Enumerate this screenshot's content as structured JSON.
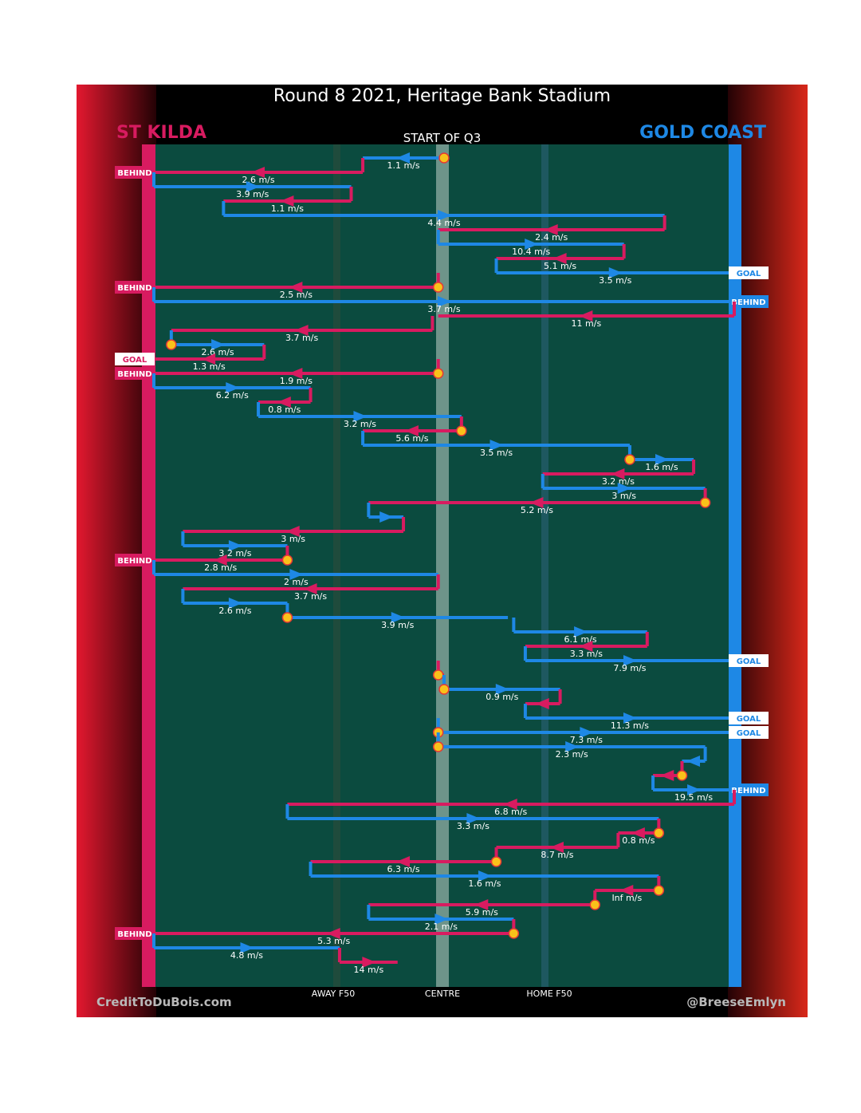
{
  "title": "Round 8 2021, Heritage Bank Stadium",
  "teams": {
    "left": "ST KILDA",
    "right": "GOLD COAST"
  },
  "period_label": "START OF Q3",
  "axis_labels": [
    "AWAY F50",
    "CENTRE",
    "HOME F50"
  ],
  "credits": {
    "left": "CreditToDuBois.com",
    "right": "@BreeseEmlyn"
  },
  "colors": {
    "st_kilda": "#d81b60",
    "gold_coast": "#1e88e5",
    "field": "#0b4b3f",
    "ball": "#f9c11a"
  },
  "chart_data": {
    "type": "line",
    "description_units": "speed labels in m/s; x = ground position from St Kilda goal (0) to Gold Coast goal (100)",
    "events": [
      {
        "team": "GC",
        "from": 50,
        "to": 36,
        "speed": "1.1 m/s",
        "start_ball": true
      },
      {
        "team": "STK",
        "from": 36,
        "to": 0,
        "speed": "2.6 m/s",
        "result": "BEHIND"
      },
      {
        "team": "GC",
        "from": 0,
        "to": 34,
        "speed": "3.9 m/s"
      },
      {
        "team": "STK",
        "from": 34,
        "to": 12,
        "speed": "1.1 m/s"
      },
      {
        "team": "GC",
        "from": 12,
        "to": 88,
        "speed": "4.4 m/s"
      },
      {
        "team": "STK",
        "from": 88,
        "to": 49,
        "speed": "2.4 m/s"
      },
      {
        "team": "GC",
        "from": 49,
        "to": 81,
        "speed": "10.4 m/s"
      },
      {
        "team": "STK",
        "from": 81,
        "to": 59,
        "speed": "5.1 m/s"
      },
      {
        "team": "GC",
        "from": 59,
        "to": 100,
        "speed": "3.5 m/s",
        "result": "GOAL"
      },
      {
        "team": "STK",
        "from": 49,
        "to": 0,
        "speed": "2.5 m/s",
        "result": "BEHIND",
        "start_ball": true
      },
      {
        "team": "GC",
        "from": 0,
        "to": 100,
        "speed": "3.7 m/s",
        "result": "BEHIND"
      },
      {
        "team": "STK",
        "from": 100,
        "to": 49,
        "speed": "11 m/s"
      },
      {
        "team": "STK",
        "from": 48,
        "to": 3,
        "speed": "3.7 m/s"
      },
      {
        "team": "GC",
        "from": 3,
        "to": 19,
        "speed": "2.6 m/s",
        "start_ball": true
      },
      {
        "team": "STK",
        "from": 19,
        "to": 0,
        "speed": "1.3 m/s",
        "result": "GOAL"
      },
      {
        "team": "STK",
        "from": 49,
        "to": 0,
        "speed": "1.9 m/s",
        "result": "BEHIND",
        "start_ball": true
      },
      {
        "team": "GC",
        "from": 0,
        "to": 27,
        "speed": "6.2 m/s"
      },
      {
        "team": "STK",
        "from": 27,
        "to": 18,
        "speed": "0.8 m/s"
      },
      {
        "team": "GC",
        "from": 18,
        "to": 53,
        "speed": "3.2 m/s"
      },
      {
        "team": "STK",
        "from": 53,
        "to": 36,
        "speed": "5.6 m/s",
        "start_ball": true
      },
      {
        "team": "GC",
        "from": 36,
        "to": 82,
        "speed": "3.5 m/s"
      },
      {
        "team": "GC",
        "from": 82,
        "to": 93,
        "speed": "1.6 m/s",
        "start_ball": true
      },
      {
        "team": "STK",
        "from": 93,
        "to": 67,
        "speed": "3.2 m/s"
      },
      {
        "team": "GC",
        "from": 67,
        "to": 95,
        "speed": "3 m/s"
      },
      {
        "team": "STK",
        "from": 95,
        "to": 37,
        "speed": "5.2 m/s",
        "start_ball": true
      },
      {
        "team": "GC",
        "from": 37,
        "to": 43,
        "speed": ""
      },
      {
        "team": "STK",
        "from": 43,
        "to": 5,
        "speed": "3 m/s"
      },
      {
        "team": "GC",
        "from": 5,
        "to": 23,
        "speed": "3.2 m/s"
      },
      {
        "team": "STK",
        "from": 23,
        "to": 0,
        "speed": "2.8 m/s",
        "result": "BEHIND",
        "start_ball": true
      },
      {
        "team": "GC",
        "from": 0,
        "to": 49,
        "speed": "2 m/s"
      },
      {
        "team": "STK",
        "from": 49,
        "to": 5,
        "speed": "3.7 m/s"
      },
      {
        "team": "GC",
        "from": 5,
        "to": 23,
        "speed": "2.6 m/s"
      },
      {
        "team": "GC",
        "from": 23,
        "to": 61,
        "speed": "3.9 m/s",
        "start_ball": true
      },
      {
        "team": "GC",
        "from": 62,
        "to": 85,
        "speed": "6.1 m/s"
      },
      {
        "team": "STK",
        "from": 85,
        "to": 64,
        "speed": "3.3 m/s"
      },
      {
        "team": "GC",
        "from": 64,
        "to": 100,
        "speed": "7.9 m/s",
        "result": "GOAL"
      },
      {
        "team": "STK",
        "from": 49,
        "to": 50,
        "speed": "",
        "start_ball": true
      },
      {
        "team": "GC",
        "from": 50,
        "to": 70,
        "speed": "0.9 m/s",
        "start_ball": true
      },
      {
        "team": "STK",
        "from": 70,
        "to": 64,
        "speed": ""
      },
      {
        "team": "GC",
        "from": 64,
        "to": 100,
        "speed": "11.3 m/s",
        "result": "GOAL"
      },
      {
        "team": "GC",
        "from": 49,
        "to": 100,
        "speed": "7.3 m/s",
        "result": "GOAL",
        "start_ball": true
      },
      {
        "team": "GC",
        "from": 49,
        "to": 95,
        "speed": "2.3 m/s",
        "start_ball": true
      },
      {
        "team": "GC",
        "from": 95,
        "to": 91,
        "speed": ""
      },
      {
        "team": "STK",
        "from": 91,
        "to": 86,
        "speed": "",
        "start_ball": true
      },
      {
        "team": "GC",
        "from": 86,
        "to": 100,
        "speed": "19.5 m/s",
        "result": "BEHIND"
      },
      {
        "team": "STK",
        "from": 100,
        "to": 23,
        "speed": "6.8 m/s"
      },
      {
        "team": "GC",
        "from": 23,
        "to": 87,
        "speed": "3.3 m/s"
      },
      {
        "team": "STK",
        "from": 87,
        "to": 80,
        "speed": "0.8 m/s",
        "start_ball": true
      },
      {
        "team": "STK",
        "from": 80,
        "to": 59,
        "speed": "8.7 m/s"
      },
      {
        "team": "STK",
        "from": 59,
        "to": 27,
        "speed": "6.3 m/s",
        "start_ball": true
      },
      {
        "team": "GC",
        "from": 27,
        "to": 87,
        "speed": "1.6 m/s"
      },
      {
        "team": "STK",
        "from": 87,
        "to": 76,
        "speed": "Inf m/s",
        "start_ball": true
      },
      {
        "team": "STK",
        "from": 76,
        "to": 37,
        "speed": "5.9 m/s",
        "start_ball": true
      },
      {
        "team": "GC",
        "from": 37,
        "to": 62,
        "speed": "2.1 m/s"
      },
      {
        "team": "STK",
        "from": 62,
        "to": 0,
        "speed": "5.3 m/s",
        "result": "BEHIND",
        "start_ball": true
      },
      {
        "team": "GC",
        "from": 0,
        "to": 32,
        "speed": "4.8 m/s"
      },
      {
        "team": "STK",
        "from": 32,
        "to": 42,
        "speed": "14 m/s"
      }
    ]
  }
}
